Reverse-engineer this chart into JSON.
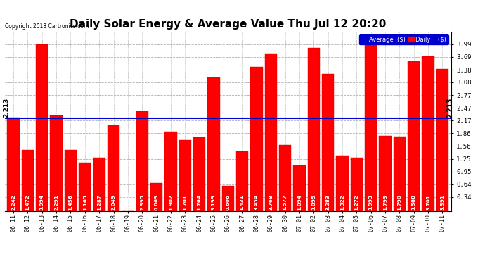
{
  "title": "Daily Solar Energy & Average Value Thu Jul 12 20:20",
  "copyright": "Copyright 2018 Cartronics.com",
  "categories": [
    "06-11",
    "06-12",
    "06-13",
    "06-14",
    "06-15",
    "06-16",
    "06-17",
    "06-18",
    "06-19",
    "06-20",
    "06-21",
    "06-22",
    "06-23",
    "06-24",
    "06-25",
    "06-26",
    "06-27",
    "06-28",
    "06-29",
    "06-30",
    "07-01",
    "07-02",
    "07-03",
    "07-04",
    "07-05",
    "07-06",
    "07-07",
    "07-08",
    "07-09",
    "07-10",
    "07-11"
  ],
  "values": [
    2.242,
    1.472,
    3.994,
    2.291,
    1.456,
    1.165,
    1.287,
    2.049,
    0.0,
    2.395,
    0.669,
    1.902,
    1.701,
    1.764,
    3.199,
    0.606,
    1.431,
    3.454,
    3.768,
    1.577,
    1.094,
    3.895,
    3.283,
    1.322,
    1.272,
    3.993,
    1.793,
    1.79,
    3.588,
    3.701,
    3.391
  ],
  "average": 2.213,
  "bar_color": "#ff0000",
  "average_line_color": "#0000cc",
  "ylim_max": 4.29,
  "yticks": [
    0.34,
    0.64,
    0.95,
    1.25,
    1.56,
    1.86,
    2.17,
    2.47,
    2.77,
    3.08,
    3.38,
    3.69,
    3.99
  ],
  "background_color": "#ffffff",
  "grid_color": "#b0b0b0",
  "title_fontsize": 11,
  "legend_avg_color": "#0000cc",
  "legend_daily_color": "#ff0000"
}
